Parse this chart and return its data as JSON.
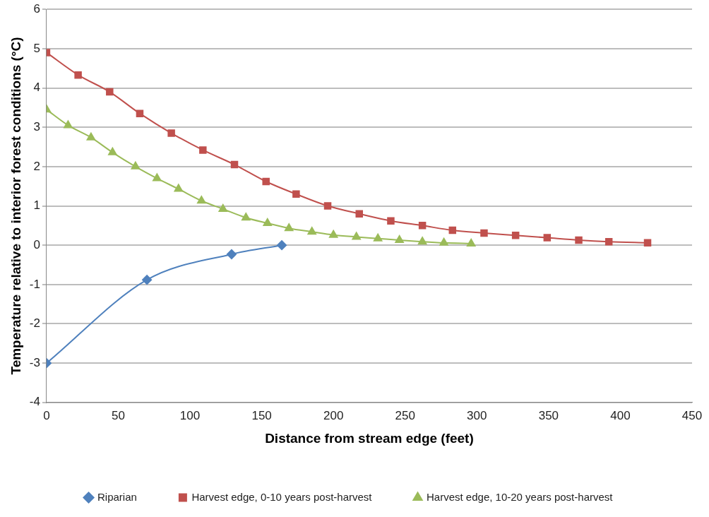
{
  "chart_data": {
    "type": "line",
    "xlabel": "Distance from stream edge (feet)",
    "ylabel": "Temperature relative to interior forest conditions (°C)",
    "xlim": [
      0,
      450
    ],
    "xticks": [
      0,
      50,
      100,
      150,
      200,
      250,
      300,
      350,
      400,
      450
    ],
    "ylim": [
      -4,
      6
    ],
    "yticks": [
      -4,
      -3,
      -2,
      -1,
      0,
      1,
      2,
      3,
      4,
      5,
      6
    ],
    "grid": "y",
    "legend": "bottom",
    "series": [
      {
        "name": "Riparian",
        "color": "#4f81bd",
        "marker": "diamond",
        "x": [
          0,
          70,
          129,
          164
        ],
        "values": [
          -3,
          -0.88,
          -0.23,
          0
        ]
      },
      {
        "name": "Harvest edge, 0-10 years post-harvest",
        "color": "#c0504d",
        "marker": "square",
        "x": [
          0,
          22,
          44,
          65,
          87,
          109,
          131,
          153,
          174,
          196,
          218,
          240,
          262,
          283,
          305,
          327,
          349,
          371,
          392,
          419
        ],
        "values": [
          4.9,
          4.33,
          3.9,
          3.35,
          2.85,
          2.42,
          2.05,
          1.62,
          1.3,
          1.0,
          0.8,
          0.62,
          0.5,
          0.38,
          0.31,
          0.25,
          0.19,
          0.13,
          0.09,
          0.06
        ]
      },
      {
        "name": "Harvest edge, 10-20 years post-harvest",
        "color": "#9bbb59",
        "marker": "triangle",
        "x": [
          0,
          15,
          31,
          46,
          62,
          77,
          92,
          108,
          123,
          139,
          154,
          169,
          185,
          200,
          216,
          231,
          246,
          262,
          277,
          296
        ],
        "values": [
          3.45,
          3.05,
          2.74,
          2.36,
          2.0,
          1.7,
          1.43,
          1.13,
          0.92,
          0.7,
          0.56,
          0.43,
          0.34,
          0.26,
          0.21,
          0.17,
          0.13,
          0.09,
          0.06,
          0.04
        ]
      }
    ]
  }
}
